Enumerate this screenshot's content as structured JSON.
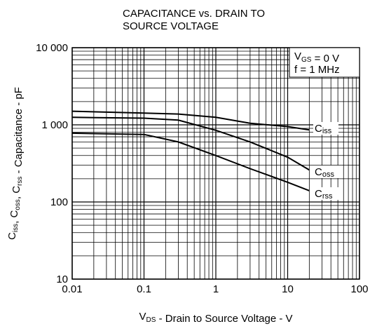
{
  "chart_data": {
    "type": "line",
    "title": [
      "CAPACITANCE vs. DRAIN TO",
      "SOURCE VOLTAGE"
    ],
    "xlabel": [
      {
        "text": "V"
      },
      {
        "text": "DS",
        "sub": true
      },
      {
        "text": " - Drain to Source Voltage - V"
      }
    ],
    "ylabel": [
      {
        "text": "C"
      },
      {
        "text": "iss",
        "sub": true
      },
      {
        "text": ", C"
      },
      {
        "text": "oss",
        "sub": true
      },
      {
        "text": ", C"
      },
      {
        "text": "rss",
        "sub": true
      },
      {
        "text": " - Capacitance - pF"
      }
    ],
    "annotations": [
      [
        {
          "text": "V"
        },
        {
          "text": "GS",
          "sub": true
        },
        {
          "text": " = 0 V"
        }
      ],
      [
        {
          "text": "f = 1 MHz"
        }
      ]
    ],
    "xscale": "log",
    "yscale": "log",
    "grid": true,
    "minor_grid": true,
    "xlim": [
      0.01,
      100
    ],
    "ylim": [
      10,
      10000
    ],
    "xticks": [
      0.01,
      0.1,
      1,
      10,
      100
    ],
    "yticks": [
      10,
      100,
      {
        "value": 1000,
        "label": "1 000"
      },
      {
        "value": 10000,
        "label": "10 000"
      }
    ],
    "x": [
      0.01,
      0.1,
      0.3,
      1,
      3,
      10,
      20
    ],
    "series": [
      {
        "symbol": "C",
        "subscript": "iss",
        "color": "#000000",
        "values": [
          1500,
          1420,
          1380,
          1250,
          1050,
          950,
          860
        ]
      },
      {
        "symbol": "C",
        "subscript": "oss",
        "color": "#000000",
        "values": [
          1250,
          1220,
          1150,
          850,
          600,
          380,
          260
        ]
      },
      {
        "symbol": "C",
        "subscript": "rss",
        "color": "#000000",
        "values": [
          780,
          750,
          600,
          400,
          270,
          180,
          140
        ]
      }
    ]
  }
}
